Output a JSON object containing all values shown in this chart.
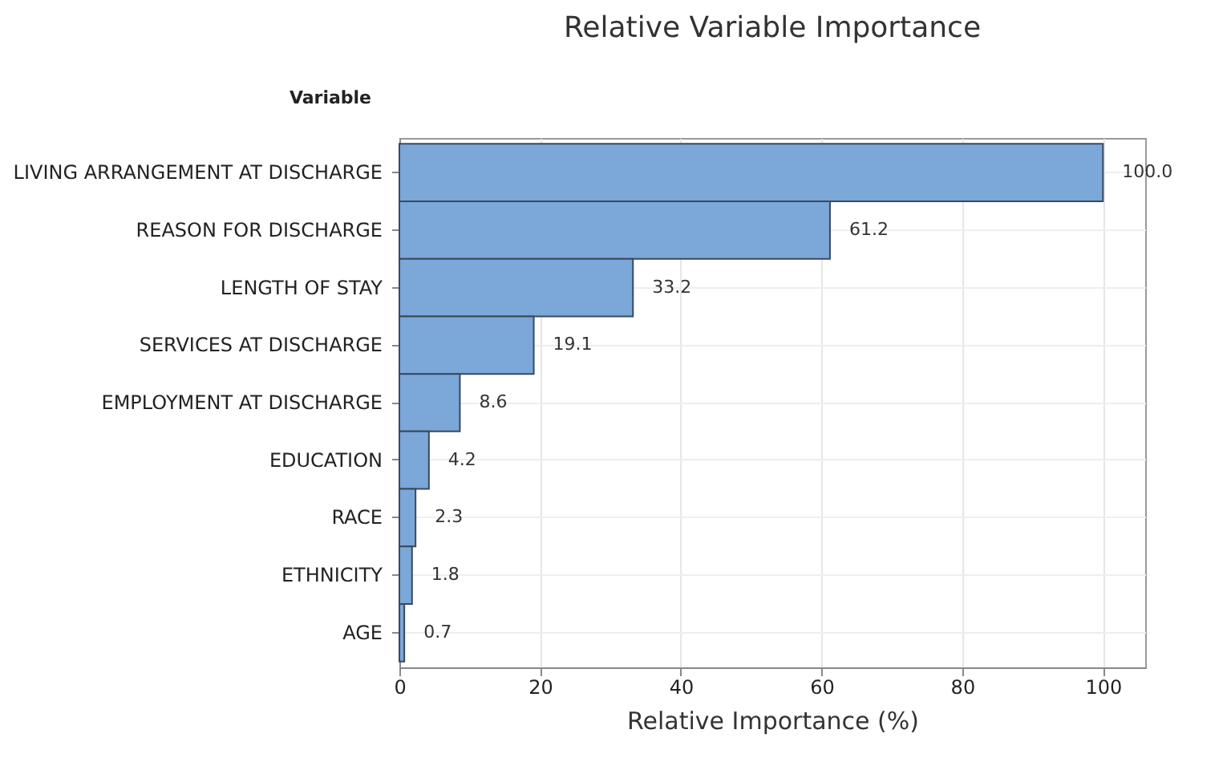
{
  "chart_data": {
    "type": "bar",
    "orientation": "horizontal",
    "title": "Relative Variable Importance",
    "xlabel": "Relative Importance (%)",
    "ylabel": "Variable",
    "categories": [
      "LIVING ARRANGEMENT AT DISCHARGE",
      "REASON FOR DISCHARGE",
      "LENGTH OF STAY",
      "SERVICES AT DISCHARGE",
      "EMPLOYMENT AT DISCHARGE",
      "EDUCATION",
      "RACE",
      "ETHNICITY",
      "AGE"
    ],
    "values": [
      100.0,
      61.2,
      33.2,
      19.1,
      8.6,
      4.2,
      2.3,
      1.8,
      0.7
    ],
    "value_labels": [
      "100.0",
      "61.2",
      "33.2",
      "19.1",
      "8.6",
      "4.2",
      "2.3",
      "1.8",
      "0.7"
    ],
    "color": "#7ba7d9",
    "xlim": [
      0,
      106
    ],
    "xticks": [
      0,
      20,
      40,
      60,
      80,
      100
    ],
    "grid": true
  }
}
